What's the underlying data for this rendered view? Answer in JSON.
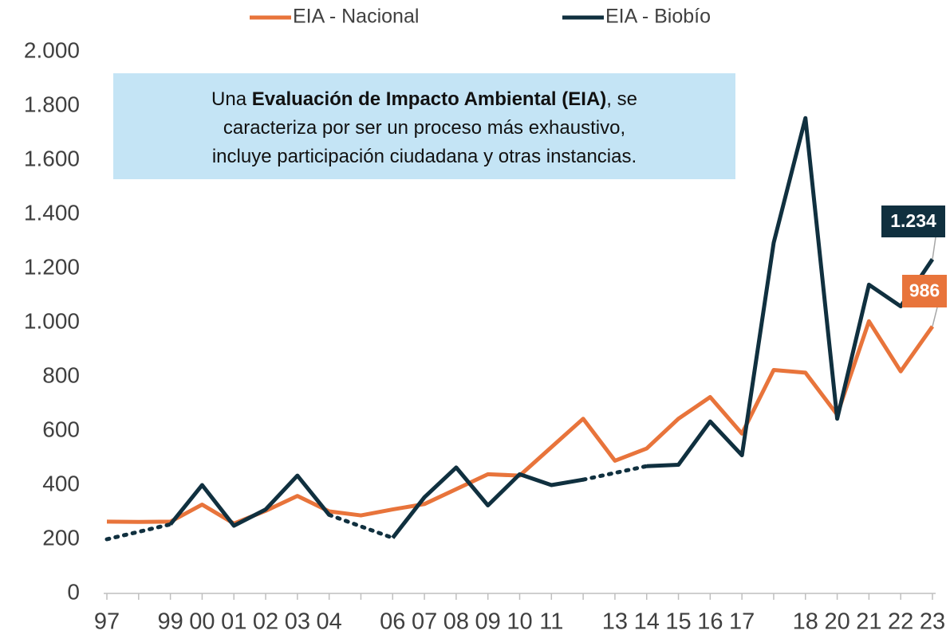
{
  "chart_data": {
    "type": "line",
    "categories": [
      "97",
      null,
      "99",
      "00",
      "01",
      "02",
      "03",
      "04",
      null,
      "06",
      "07",
      "08",
      "09",
      "10",
      "11",
      null,
      "13",
      "14",
      "15",
      "16",
      "17",
      null,
      "18",
      "20",
      "21",
      "22",
      "23"
    ],
    "series": [
      {
        "name": "EIA - Nacional",
        "color": "#e8743b",
        "values": [
          265,
          264,
          265,
          328,
          258,
          305,
          360,
          303,
          288,
          310,
          330,
          385,
          440,
          435,
          540,
          645,
          490,
          535,
          645,
          725,
          590,
          825,
          815,
          660,
          1005,
          820,
          986
        ],
        "value_labels": [
          null,
          null,
          null,
          null,
          null,
          null,
          null,
          null,
          null,
          null,
          null,
          null,
          null,
          null,
          null,
          null,
          null,
          null,
          null,
          null,
          null,
          null,
          null,
          null,
          null,
          null,
          "986"
        ]
      },
      {
        "name": "EIA - Biobío",
        "color": "#10303f",
        "values": [
          200,
          null,
          255,
          400,
          250,
          310,
          435,
          290,
          null,
          205,
          355,
          465,
          325,
          440,
          400,
          420,
          null,
          470,
          475,
          635,
          510,
          1295,
          1755,
          645,
          1140,
          1060,
          1234
        ],
        "value_labels": [
          null,
          null,
          null,
          null,
          null,
          null,
          null,
          null,
          null,
          null,
          null,
          null,
          null,
          null,
          null,
          null,
          null,
          null,
          null,
          null,
          null,
          null,
          null,
          null,
          null,
          null,
          "1.234"
        ]
      }
    ],
    "gap_style": "dotted",
    "ylim": [
      0,
      2000
    ],
    "yticks": [
      0,
      200,
      400,
      600,
      800,
      {
        "value": 1000,
        "label": "1.000"
      },
      {
        "value": 1200,
        "label": "1.200"
      },
      {
        "value": 1400,
        "label": "1.400"
      },
      {
        "value": 1600,
        "label": "1.600"
      },
      {
        "value": 1800,
        "label": "1.800"
      },
      {
        "value": 2000,
        "label": "2.000"
      }
    ],
    "grid": false,
    "legend": "top",
    "annotation": {
      "lines": [
        [
          {
            "text": "Una "
          },
          {
            "text": "Evaluación de Impacto Ambiental (EIA)",
            "bold": true
          },
          {
            "text": ", se"
          }
        ],
        [
          {
            "text": "caracteriza por ser un proceso más exhaustivo,"
          }
        ],
        [
          {
            "text": "incluye participación ciudadana y otras instancias."
          }
        ]
      ]
    }
  }
}
